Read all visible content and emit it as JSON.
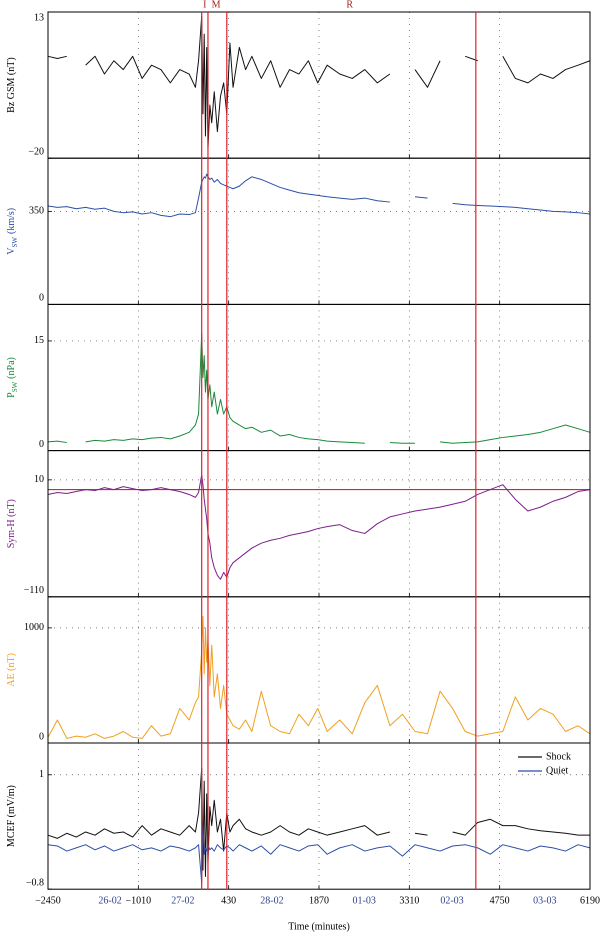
{
  "chart_data": {
    "type": "line",
    "xlabel": "Time (minutes)",
    "xlim": [
      -2450,
      6190
    ],
    "xticks": [
      {
        "value": -2450,
        "label": "−2450"
      },
      {
        "value": -1010,
        "label": "−1010"
      },
      430,
      1870,
      3310,
      4750,
      6190
    ],
    "grid": true,
    "day_labels": [
      {
        "x": -1460,
        "label": "26-02"
      },
      {
        "x": -300,
        "label": "27-02"
      },
      {
        "x": 1120,
        "label": "28-02"
      },
      {
        "x": 2590,
        "label": "01-03"
      },
      {
        "x": 3990,
        "label": "02-03"
      },
      {
        "x": 5470,
        "label": "03-03"
      }
    ],
    "vlines": [
      0,
      100,
      400,
      4370
    ],
    "vline_color": "#e0202a",
    "phase_labels": [
      {
        "x": 50,
        "label": "I"
      },
      {
        "x": 230,
        "label": "M"
      },
      {
        "x": 2360,
        "label": "R"
      }
    ],
    "legend": "upper right",
    "x": [
      -2450,
      -2300,
      -2150,
      -2000,
      -1850,
      -1700,
      -1550,
      -1400,
      -1250,
      -1100,
      -950,
      -800,
      -650,
      -500,
      -350,
      -200,
      -100,
      -50,
      0,
      20,
      40,
      60,
      80,
      100,
      130,
      160,
      200,
      250,
      300,
      350,
      400,
      450,
      500,
      600,
      700,
      800,
      950,
      1100,
      1250,
      1400,
      1550,
      1700,
      1850,
      2000,
      2200,
      2400,
      2600,
      2800,
      3000,
      3200,
      3400,
      3600,
      3800,
      4000,
      4200,
      4400,
      4600,
      4800,
      5000,
      5200,
      5400,
      5600,
      5800,
      6000,
      6190
    ],
    "panels": [
      {
        "ylabel": "Bz GSM (nT)",
        "label_color": "#000000",
        "ylim": [
          -20,
          13
        ],
        "yticks": [
          {
            "value": -20,
            "label": "−20"
          },
          13
        ],
        "series": [
          {
            "color": "#111111",
            "values": [
              3,
              2.5,
              3,
              null,
              1,
              3,
              -1,
              2,
              0,
              3,
              -2,
              1,
              0,
              -3,
              0,
              -1,
              -4,
              2,
              12,
              -10,
              8,
              -15,
              5,
              -18,
              -8,
              -12,
              -5,
              -14,
              -6,
              -3,
              -10,
              6,
              -4,
              5,
              0,
              3,
              -2,
              2,
              -4,
              0,
              -1,
              2,
              -3,
              1,
              -1,
              -2,
              0,
              -3,
              -1,
              null,
              0,
              -4,
              2,
              null,
              3,
              2,
              null,
              3,
              -2,
              -3,
              -1,
              -2,
              0,
              1,
              2
            ]
          }
        ]
      },
      {
        "ylabel": "V",
        "ylabel_sub": "SW",
        "ylabel_unit": "(km/s)",
        "label_color": "#2b4fa8",
        "ylim": [
          0,
          550
        ],
        "yticks": [
          0,
          350
        ],
        "series": [
          {
            "color": "#2b4fa8",
            "values": [
              370,
              365,
              368,
              360,
              365,
              358,
              362,
              350,
              345,
              348,
              340,
              345,
              335,
              330,
              340,
              338,
              345,
              400,
              460,
              470,
              480,
              475,
              490,
              480,
              470,
              475,
              460,
              470,
              455,
              450,
              445,
              440,
              435,
              445,
              465,
              480,
              470,
              455,
              440,
              430,
              420,
              415,
              410,
              405,
              400,
              395,
              400,
              390,
              385,
              null,
              405,
              400,
              null,
              380,
              375,
              372,
              370,
              368,
              365,
              360,
              355,
              350,
              348,
              345,
              340
            ]
          }
        ]
      },
      {
        "ylabel": "P",
        "ylabel_sub": "SW",
        "ylabel_unit": "(nPa)",
        "label_color": "#1a8a3a",
        "ylim": [
          0,
          20
        ],
        "yticks": [
          0,
          15
        ],
        "series": [
          {
            "color": "#1a8a3a",
            "values": [
              1.2,
              1.3,
              1.1,
              null,
              1.2,
              1.4,
              1.3,
              1.5,
              1.4,
              1.6,
              1.5,
              1.7,
              1.8,
              1.6,
              2,
              2.5,
              3.5,
              5,
              16,
              10,
              13,
              8,
              11,
              7,
              9,
              6,
              8,
              5,
              7,
              5,
              6,
              4.5,
              4,
              3.5,
              3,
              3.2,
              2.5,
              2.8,
              2,
              2.2,
              1.8,
              1.6,
              1.5,
              1.3,
              1.2,
              1.1,
              1,
              null,
              1.1,
              1,
              1,
              null,
              1.2,
              1,
              1.1,
              1.2,
              1.5,
              1.8,
              2,
              2.2,
              2.5,
              3,
              3.5,
              3,
              2.5
            ]
          }
        ]
      },
      {
        "ylabel": "Sym-H (nT)",
        "label_color": "#7b1f8a",
        "ylim": [
          -110,
          40
        ],
        "yticks": [
          {
            "value": -110,
            "label": "−110"
          },
          10
        ],
        "hline": 0,
        "series": [
          {
            "color": "#7b1f8a",
            "values": [
              -5,
              -3,
              -4,
              -2,
              0,
              -1,
              2,
              0,
              3,
              1,
              -1,
              0,
              2,
              0,
              -2,
              -5,
              -8,
              -3,
              15,
              5,
              -10,
              -20,
              -30,
              -45,
              -55,
              -70,
              -80,
              -88,
              -92,
              -85,
              -90,
              -80,
              -75,
              -70,
              -65,
              -60,
              -55,
              -52,
              -50,
              -47,
              -45,
              -43,
              -40,
              -38,
              -36,
              -42,
              -45,
              -35,
              -28,
              -25,
              -22,
              -20,
              -18,
              -15,
              -12,
              -5,
              0,
              5,
              -10,
              -22,
              -18,
              -12,
              -8,
              -2,
              0
            ]
          }
        ]
      },
      {
        "ylabel": "AE (nT)",
        "label_color": "#f0a020",
        "ylim": [
          0,
          1270
        ],
        "yticks": [
          0,
          1000
        ],
        "series": [
          {
            "color": "#f0a020",
            "values": [
              50,
              200,
              40,
              60,
              50,
              80,
              40,
              60,
              100,
              50,
              40,
              150,
              60,
              80,
              300,
              200,
              350,
              400,
              800,
              1100,
              600,
              1000,
              700,
              900,
              500,
              850,
              400,
              600,
              300,
              500,
              250,
              200,
              150,
              120,
              200,
              100,
              450,
              150,
              100,
              80,
              250,
              150,
              300,
              100,
              200,
              80,
              350,
              500,
              150,
              250,
              100,
              80,
              450,
              300,
              100,
              60,
              80,
              100,
              400,
              200,
              300,
              250,
              100,
              150,
              80
            ]
          }
        ]
      },
      {
        "ylabel": "MCEF (mV/m)",
        "label_color": "#000000",
        "ylim": [
          -0.8,
          1.5
        ],
        "yticks": [
          {
            "value": -0.8,
            "label": "−0.8"
          },
          1.0
        ],
        "series": [
          {
            "name": "Shock",
            "color": "#111111",
            "values": [
              0.05,
              0,
              0.08,
              0.02,
              0.1,
              0.05,
              0.15,
              0.08,
              0.1,
              0.02,
              0.2,
              0.05,
              0.15,
              0.1,
              0.05,
              0.2,
              0.1,
              0.4,
              1.1,
              -0.5,
              0.9,
              -0.6,
              0.7,
              -0.4,
              0.5,
              0.2,
              0.6,
              0.1,
              0.3,
              -0.2,
              0.4,
              0.1,
              0.2,
              0.3,
              0.15,
              0.1,
              0.05,
              0.1,
              0.2,
              0.1,
              0.05,
              0.15,
              0.1,
              0.05,
              0.1,
              0.15,
              0.2,
              0.05,
              0.1,
              null,
              0.08,
              0.05,
              null,
              0.1,
              0.05,
              0.25,
              0.3,
              0.2,
              0.2,
              0.15,
              0.12,
              0.1,
              0.08,
              0.05,
              0.05
            ]
          },
          {
            "name": "Quiet",
            "color": "#2b4fa8",
            "values": [
              -0.1,
              -0.12,
              -0.2,
              -0.15,
              -0.1,
              -0.18,
              -0.12,
              -0.2,
              -0.15,
              -0.1,
              -0.18,
              -0.15,
              -0.2,
              -0.12,
              -0.15,
              -0.2,
              -0.15,
              -0.1,
              -0.7,
              0.2,
              -0.25,
              -0.15,
              -0.2,
              -0.1,
              -0.18,
              -0.15,
              -0.2,
              -0.1,
              -0.15,
              -0.18,
              -0.12,
              -0.15,
              -0.2,
              -0.1,
              -0.15,
              -0.2,
              -0.12,
              -0.25,
              -0.1,
              -0.15,
              -0.2,
              -0.12,
              -0.1,
              -0.25,
              -0.15,
              -0.1,
              -0.2,
              -0.15,
              -0.12,
              -0.28,
              -0.1,
              -0.15,
              -0.2,
              -0.12,
              -0.1,
              -0.15,
              -0.25,
              -0.1,
              -0.15,
              -0.2,
              -0.12,
              -0.15,
              -0.2,
              -0.1,
              -0.15
            ]
          }
        ]
      }
    ]
  }
}
